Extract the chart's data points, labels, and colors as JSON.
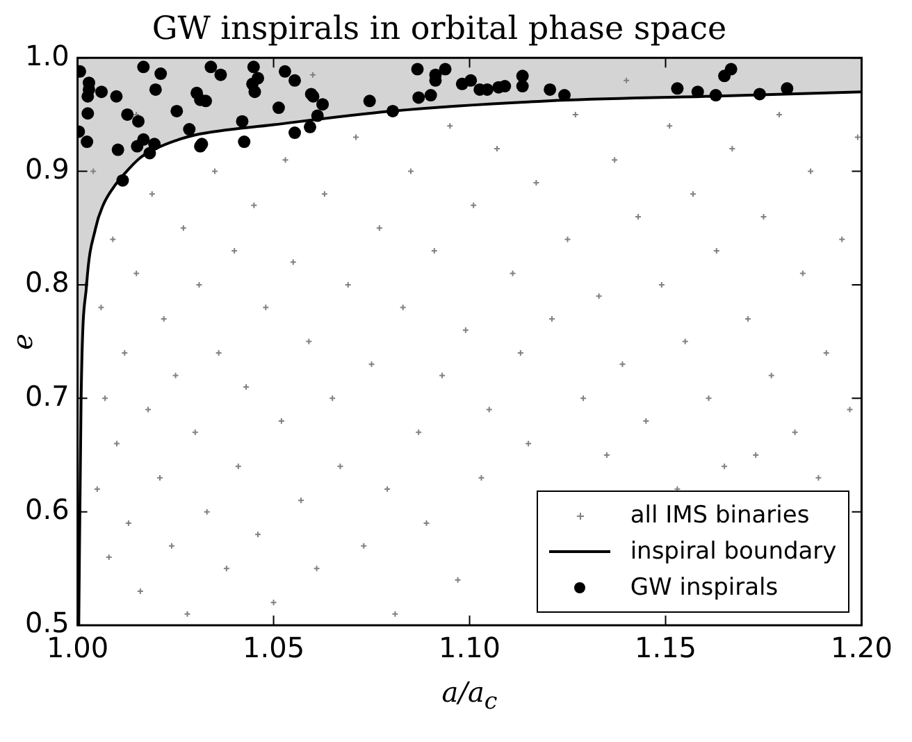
{
  "chart_data": {
    "type": "scatter",
    "title": "GW inspirals in orbital phase space",
    "xlabel": "a/a$_{c}$",
    "ylabel": "e",
    "xlim": [
      1.0,
      1.2
    ],
    "ylim": [
      0.5,
      1.0
    ],
    "xticks": [
      {
        "value": 1.0,
        "label": "1.00"
      },
      {
        "value": 1.05,
        "label": "1.05"
      },
      {
        "value": 1.1,
        "label": "1.10"
      },
      {
        "value": 1.15,
        "label": "1.15"
      },
      {
        "value": 1.2,
        "label": "1.20"
      }
    ],
    "yticks": [
      {
        "value": 0.5,
        "label": "0.5"
      },
      {
        "value": 0.6,
        "label": "0.6"
      },
      {
        "value": 0.7,
        "label": "0.7"
      },
      {
        "value": 0.8,
        "label": "0.8"
      },
      {
        "value": 0.9,
        "label": "0.9"
      },
      {
        "value": 1.0,
        "label": "1.0"
      }
    ],
    "grid": false,
    "legend": "bottom right",
    "series": [
      {
        "name": "all IMS binaries",
        "type": "scatter",
        "marker": "cross",
        "color": "#808080",
        "x": [
          1.005,
          1.006,
          1.007,
          1.008,
          1.009,
          1.01,
          1.012,
          1.013,
          1.015,
          1.016,
          1.018,
          1.019,
          1.021,
          1.022,
          1.024,
          1.025,
          1.027,
          1.028,
          1.03,
          1.031,
          1.033,
          1.035,
          1.036,
          1.038,
          1.04,
          1.041,
          1.043,
          1.045,
          1.046,
          1.048,
          1.05,
          1.052,
          1.053,
          1.055,
          1.057,
          1.059,
          1.061,
          1.063,
          1.065,
          1.067,
          1.069,
          1.071,
          1.073,
          1.075,
          1.077,
          1.079,
          1.081,
          1.083,
          1.085,
          1.087,
          1.089,
          1.091,
          1.093,
          1.095,
          1.097,
          1.099,
          1.101,
          1.103,
          1.105,
          1.107,
          1.111,
          1.113,
          1.115,
          1.117,
          1.121,
          1.125,
          1.127,
          1.129,
          1.133,
          1.135,
          1.137,
          1.139,
          1.143,
          1.145,
          1.149,
          1.151,
          1.153,
          1.155,
          1.157,
          1.161,
          1.163,
          1.165,
          1.167,
          1.171,
          1.173,
          1.175,
          1.177,
          1.179,
          1.183,
          1.185,
          1.187,
          1.189,
          1.191,
          1.195,
          1.197,
          1.199,
          1.004,
          1.015,
          1.06,
          1.14,
          1.002
        ],
        "values": [
          0.62,
          0.78,
          0.7,
          0.56,
          0.84,
          0.66,
          0.74,
          0.59,
          0.81,
          0.53,
          0.69,
          0.88,
          0.63,
          0.77,
          0.57,
          0.72,
          0.85,
          0.51,
          0.67,
          0.8,
          0.6,
          0.9,
          0.74,
          0.55,
          0.83,
          0.64,
          0.71,
          0.87,
          0.58,
          0.78,
          0.52,
          0.68,
          0.91,
          0.82,
          0.61,
          0.75,
          0.55,
          0.88,
          0.7,
          0.64,
          0.8,
          0.93,
          0.57,
          0.73,
          0.85,
          0.62,
          0.51,
          0.78,
          0.9,
          0.67,
          0.59,
          0.83,
          0.72,
          0.94,
          0.54,
          0.76,
          0.87,
          0.63,
          0.69,
          0.92,
          0.81,
          0.74,
          0.66,
          0.89,
          0.77,
          0.84,
          0.95,
          0.7,
          0.79,
          0.65,
          0.91,
          0.73,
          0.86,
          0.68,
          0.8,
          0.94,
          0.62,
          0.75,
          0.88,
          0.7,
          0.83,
          0.64,
          0.92,
          0.77,
          0.65,
          0.86,
          0.72,
          0.95,
          0.67,
          0.81,
          0.9,
          0.63,
          0.74,
          0.84,
          0.69,
          0.93,
          0.9,
          0.95,
          0.985,
          0.98,
          0.8
        ]
      },
      {
        "name": "inspiral boundary",
        "type": "line",
        "marker": "none",
        "color": "#000000",
        "x": [
          1.0003,
          1.0009,
          1.0023,
          1.0046,
          1.0065,
          1.009,
          1.012,
          1.016,
          1.02,
          1.025,
          1.03,
          1.05,
          1.08,
          1.12,
          1.16,
          1.2
        ],
        "values": [
          0.5,
          0.7,
          0.8,
          0.85,
          0.87,
          0.885,
          0.898,
          0.912,
          0.92,
          0.927,
          0.932,
          0.941,
          0.953,
          0.962,
          0.966,
          0.97
        ],
        "lower": [
          0.5,
          0.7,
          0.8,
          0.85,
          0.87,
          0.885,
          0.898,
          0.912,
          0.92,
          0.927,
          0.932,
          0.941,
          0.953,
          0.962,
          0.966,
          0.97
        ],
        "upper": [
          1.0,
          1.0,
          1.0,
          1.0,
          1.0,
          1.0,
          1.0,
          1.0,
          1.0,
          1.0,
          1.0,
          1.0,
          1.0,
          1.0,
          1.0,
          1.0
        ]
      },
      {
        "name": "GW inspirals",
        "type": "scatter",
        "marker": "circle",
        "color": "#000000",
        "x": [
          1.0006,
          1.0003,
          1.0026,
          1.0026,
          1.0029,
          1.0029,
          1.0024,
          1.0061,
          1.0099,
          1.0103,
          1.0127,
          1.0155,
          1.0168,
          1.0152,
          1.0168,
          1.0184,
          1.0196,
          1.0199,
          1.0212,
          1.0253,
          1.0285,
          1.0304,
          1.0313,
          1.0327,
          1.0313,
          1.0317,
          1.034,
          1.0365,
          1.042,
          1.0425,
          1.0449,
          1.0446,
          1.0452,
          1.046,
          1.0513,
          1.0529,
          1.0554,
          1.0554,
          1.0593,
          1.0596,
          1.0601,
          1.0625,
          1.0612,
          1.0745,
          1.0804,
          1.0867,
          1.087,
          1.0901,
          1.0913,
          1.0913,
          1.0938,
          1.0981,
          1.1003,
          1.1026,
          1.1045,
          1.1074,
          1.109,
          1.1135,
          1.1135,
          1.1205,
          1.1242,
          1.153,
          1.1582,
          1.1628,
          1.165,
          1.1667,
          1.174,
          1.181,
          1.0115
        ],
        "values": [
          0.988,
          0.935,
          0.966,
          0.951,
          0.978,
          0.972,
          0.926,
          0.97,
          0.966,
          0.919,
          0.95,
          0.944,
          0.992,
          0.922,
          0.928,
          0.916,
          0.924,
          0.972,
          0.986,
          0.953,
          0.937,
          0.969,
          0.963,
          0.962,
          0.922,
          0.924,
          0.992,
          0.985,
          0.944,
          0.926,
          0.992,
          0.977,
          0.97,
          0.982,
          0.956,
          0.988,
          0.98,
          0.934,
          0.939,
          0.968,
          0.966,
          0.959,
          0.949,
          0.962,
          0.953,
          0.99,
          0.965,
          0.967,
          0.985,
          0.98,
          0.99,
          0.977,
          0.98,
          0.972,
          0.972,
          0.974,
          0.975,
          0.984,
          0.975,
          0.972,
          0.967,
          0.973,
          0.97,
          0.967,
          0.984,
          0.99,
          0.968,
          0.973,
          0.892
        ]
      }
    ]
  }
}
